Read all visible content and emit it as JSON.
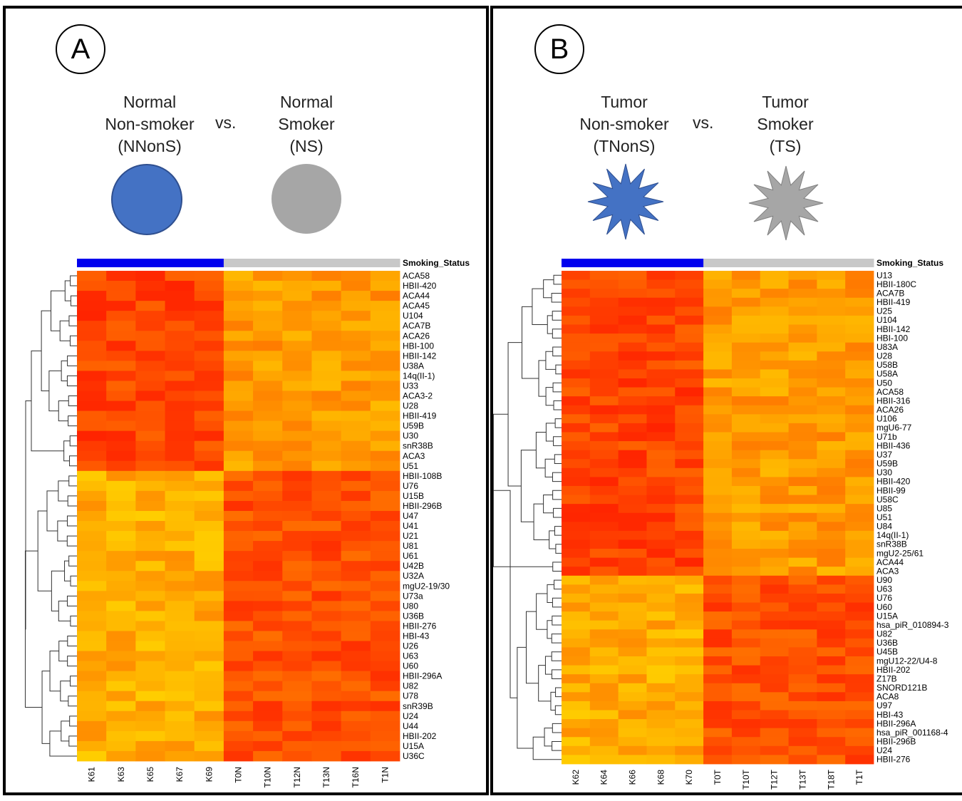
{
  "panels": [
    {
      "letter": "A",
      "group1": {
        "lines": [
          "Normal",
          "Non-smoker",
          "(NNonS)"
        ],
        "color": "#4472c4"
      },
      "vs": "vs.",
      "group2": {
        "lines": [
          "Normal",
          "Smoker",
          "(NS)"
        ],
        "color": "#a6a6a6"
      },
      "symbol": "circle"
    },
    {
      "letter": "B",
      "group1": {
        "lines": [
          "Tumor",
          "Non-smoker",
          "(TNonS)"
        ],
        "color": "#4472c4"
      },
      "vs": "vs.",
      "group2": {
        "lines": [
          "Tumor",
          "Smoker",
          "(TS)"
        ],
        "color": "#a6a6a6"
      },
      "symbol": "star"
    }
  ],
  "chart_data": [
    {
      "type": "heatmap",
      "annotation_label": "Smoking_Status",
      "annotation_colors": {
        "non_smoker": "#0000ee",
        "smoker": "#c8c8c8"
      },
      "columns": [
        "K61",
        "K63",
        "K65",
        "K67",
        "K69",
        "T0N",
        "T10N",
        "T12N",
        "T13N",
        "T16N",
        "T1N"
      ],
      "column_groups": [
        "non_smoker",
        "non_smoker",
        "non_smoker",
        "non_smoker",
        "non_smoker",
        "smoker",
        "smoker",
        "smoker",
        "smoker",
        "smoker",
        "smoker"
      ],
      "rows": [
        "ACA58",
        "HBII-420",
        "ACA44",
        "ACA45",
        "U104",
        "ACA7B",
        "ACA26",
        "HBI-100",
        "HBII-142",
        "U38A",
        "14q(II-1)",
        "U33",
        "ACA3-2",
        "U28",
        "HBII-419",
        "U59B",
        "U30",
        "snR38B",
        "ACA3",
        "U51",
        "HBII-108B",
        "U76",
        "U15B",
        "HBII-296B",
        "U47",
        "U41",
        "U21",
        "U81",
        "U61",
        "U42B",
        "U32A",
        "mgU2-19/30",
        "U73a",
        "U80",
        "U36B",
        "HBII-276",
        "HBI-43",
        "U26",
        "U63",
        "U60",
        "HBII-296A",
        "U82",
        "U78",
        "snR39B",
        "U24",
        "U44",
        "HBII-202",
        "U15A",
        "U36C"
      ],
      "top_cluster_size": 20,
      "colors": {
        "low": "#ffd700",
        "high": "#ff1a00"
      }
    },
    {
      "type": "heatmap",
      "annotation_label": "Smoking_Status",
      "annotation_colors": {
        "non_smoker": "#0000ee",
        "smoker": "#c8c8c8"
      },
      "columns": [
        "K62",
        "K64",
        "K66",
        "K68",
        "K70",
        "T0T",
        "T10T",
        "T12T",
        "T13T",
        "T18T",
        "T1T"
      ],
      "column_groups": [
        "non_smoker",
        "non_smoker",
        "non_smoker",
        "non_smoker",
        "non_smoker",
        "smoker",
        "smoker",
        "smoker",
        "smoker",
        "smoker",
        "smoker"
      ],
      "rows": [
        "U13",
        "HBII-180C",
        "ACA7B",
        "HBII-419",
        "U25",
        "U104",
        "HBII-142",
        "HBI-100",
        "U83A",
        "U28",
        "U58B",
        "U58A",
        "U50",
        "ACA58",
        "HBII-316",
        "ACA26",
        "U106",
        "mgU6-77",
        "U71b",
        "HBII-436",
        "U37",
        "U59B",
        "U30",
        "HBII-420",
        "HBII-99",
        "U58C",
        "U85",
        "U51",
        "U84",
        "14q(II-1)",
        "snR38B",
        "mgU2-25/61",
        "ACA44",
        "ACA3",
        "U90",
        "U63",
        "U76",
        "U60",
        "U15A",
        "hsa_piR_010894-3",
        "U82",
        "U36B",
        "U45B",
        "mgU12-22/U4-8",
        "HBII-202",
        "Z17B",
        "SNORD121B",
        "ACA8",
        "U97",
        "HBI-43",
        "HBII-296A",
        "hsa_piR_001168-4",
        "HBII-296B",
        "U24",
        "HBII-276"
      ],
      "top_cluster_size": 34,
      "colors": {
        "low": "#ffd700",
        "high": "#ff1a00"
      }
    }
  ]
}
